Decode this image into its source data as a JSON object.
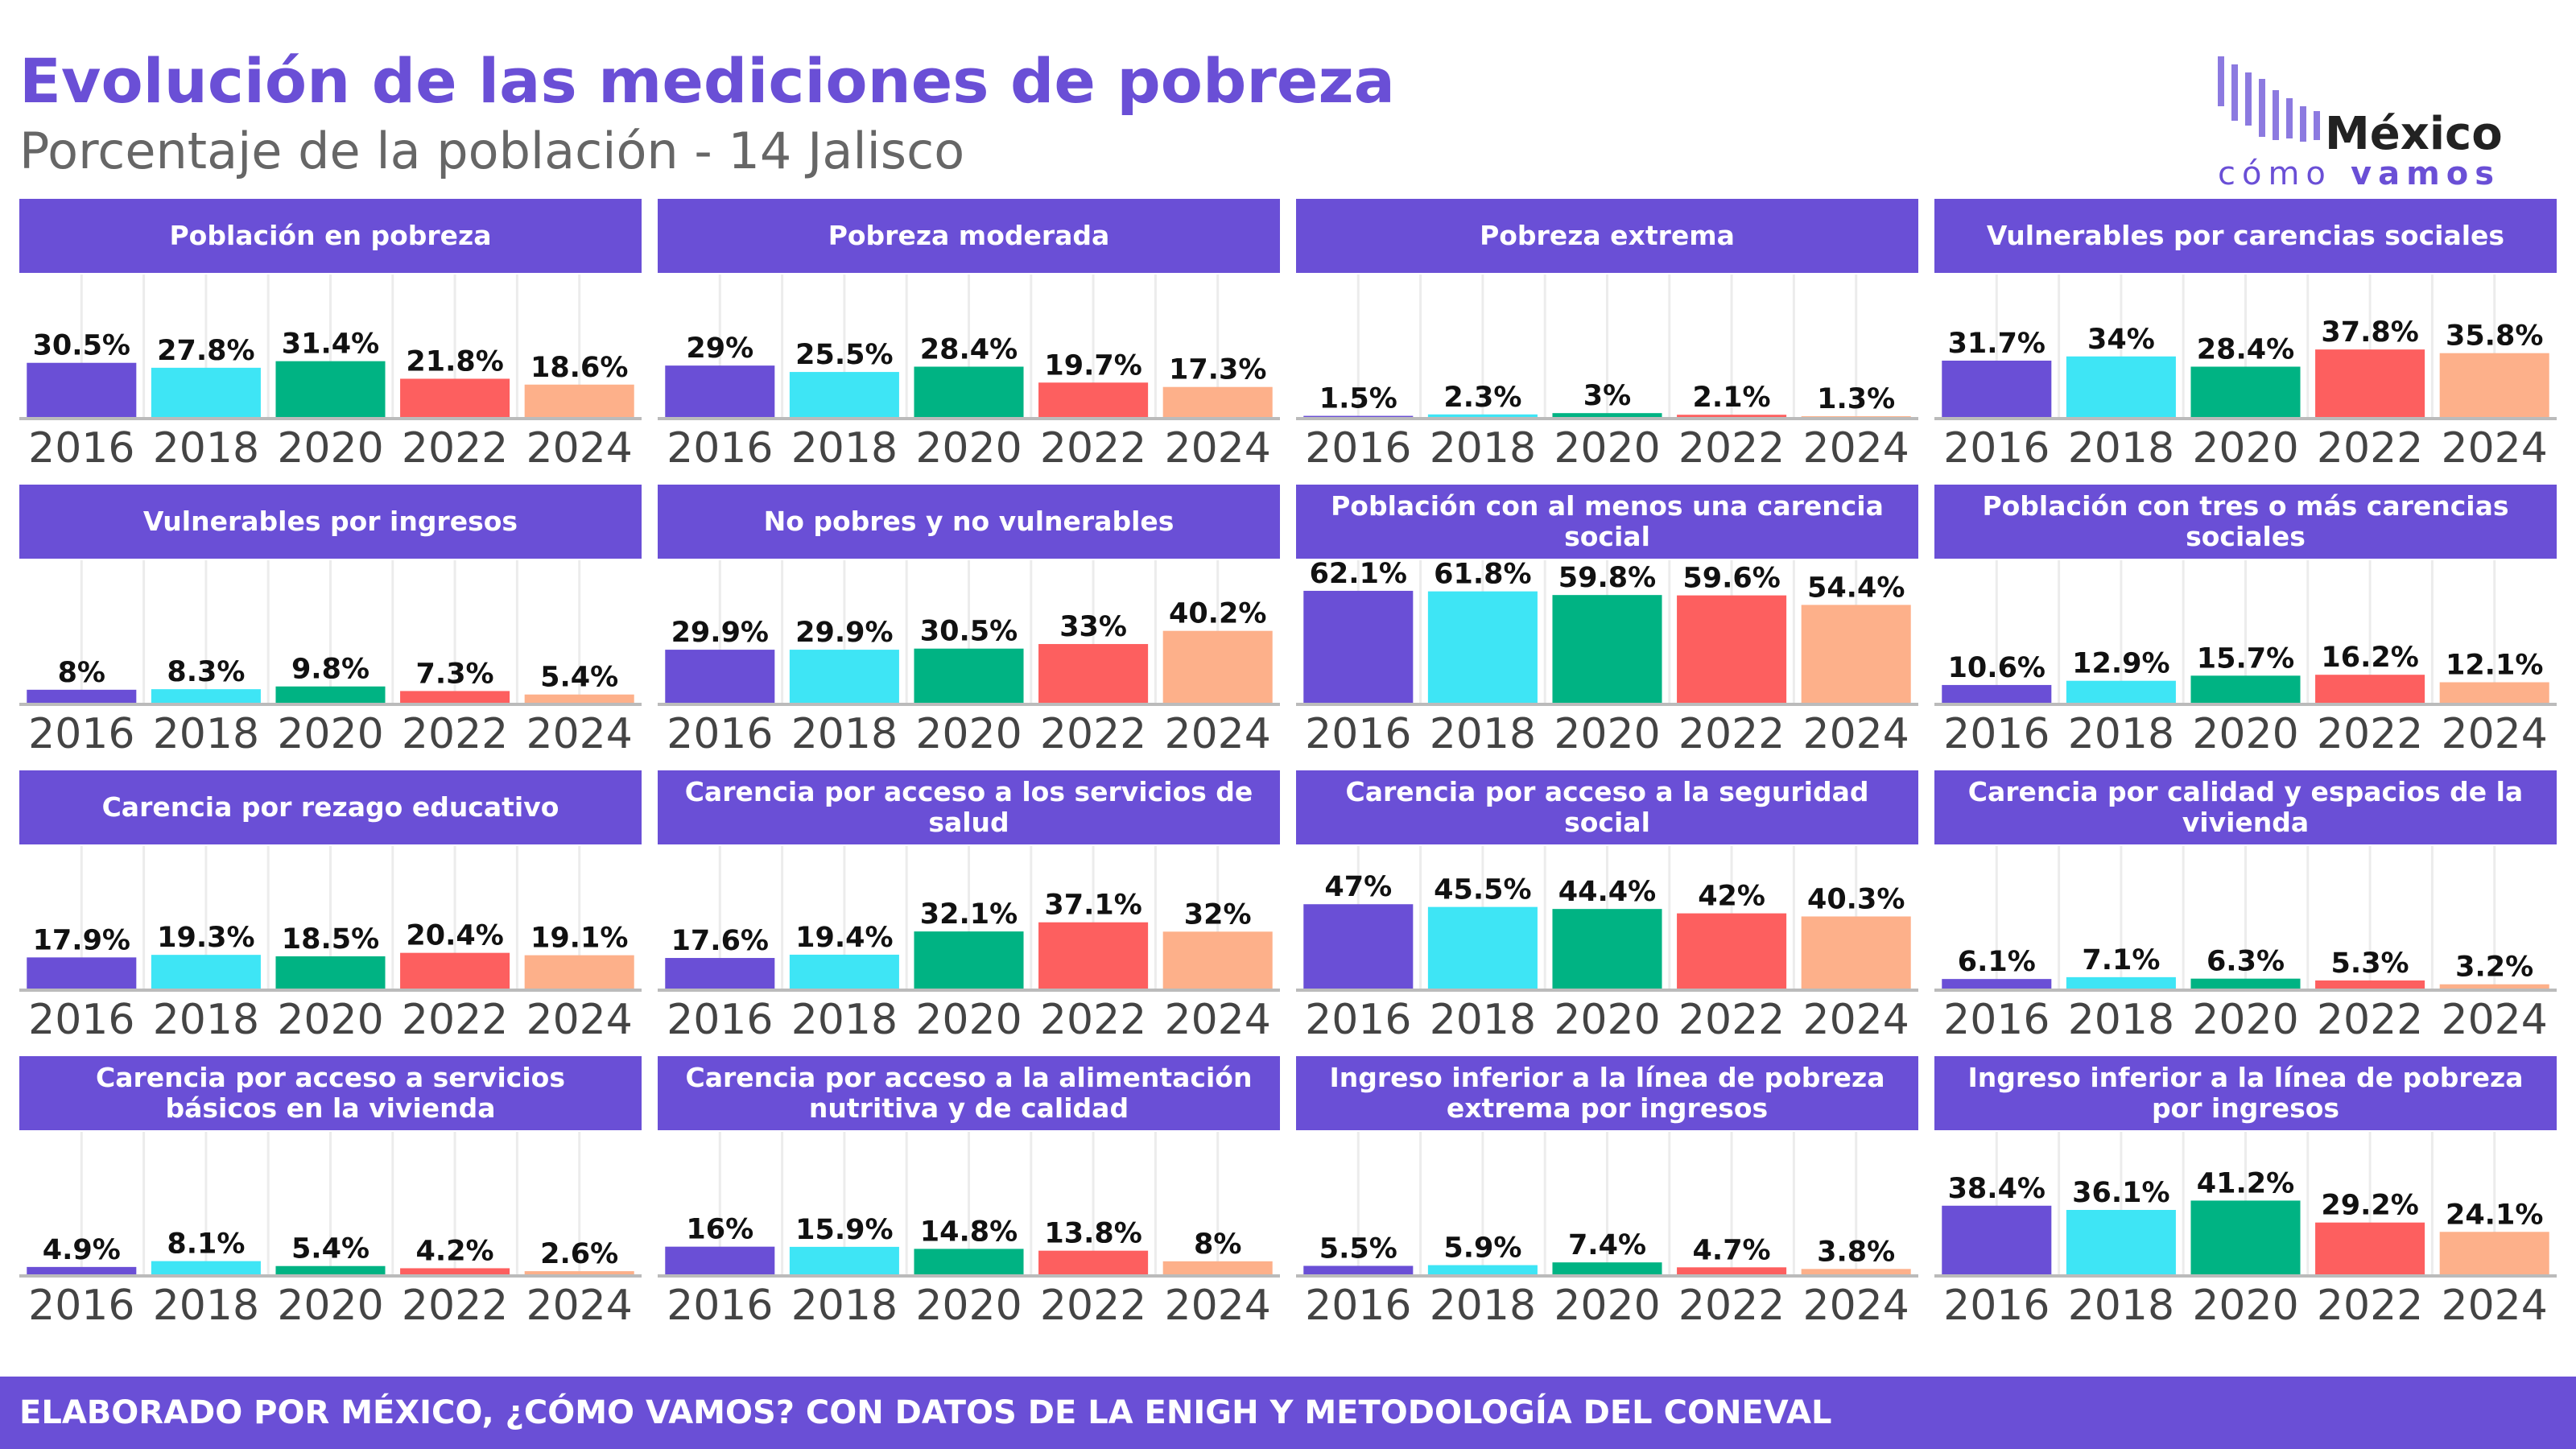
{
  "title": "Evolución de las mediciones de pobreza",
  "subtitle": "Porcentaje de la población - 14 Jalisco",
  "logo": {
    "name": "México",
    "tagline_1": "cómo",
    "tagline_2": "vamos"
  },
  "footer": "ELABORADO POR MÉXICO, ¿CÓMO VAMOS? CON DATOS DE LA ENIGH Y METODOLOGÍA DEL CONEVAL",
  "chart_data": [
    {
      "type": "bar",
      "title": "Población en pobreza",
      "categories": [
        "2016",
        "2018",
        "2020",
        "2022",
        "2024"
      ],
      "values": [
        30.5,
        27.8,
        31.4,
        21.8,
        18.6
      ],
      "value_labels": [
        "30.5%",
        "27.8%",
        "31.4%",
        "21.8%",
        "18.6%"
      ],
      "colors": [
        "#6a4fd6",
        "#3ee5f5",
        "#00b383",
        "#fd5f5f",
        "#fdb08a"
      ],
      "ylim": [
        0,
        70
      ]
    },
    {
      "type": "bar",
      "title": "Pobreza moderada",
      "categories": [
        "2016",
        "2018",
        "2020",
        "2022",
        "2024"
      ],
      "values": [
        29,
        25.5,
        28.4,
        19.7,
        17.3
      ],
      "value_labels": [
        "29%",
        "25.5%",
        "28.4%",
        "19.7%",
        "17.3%"
      ],
      "colors": [
        "#6a4fd6",
        "#3ee5f5",
        "#00b383",
        "#fd5f5f",
        "#fdb08a"
      ],
      "ylim": [
        0,
        70
      ]
    },
    {
      "type": "bar",
      "title": "Pobreza extrema",
      "categories": [
        "2016",
        "2018",
        "2020",
        "2022",
        "2024"
      ],
      "values": [
        1.5,
        2.3,
        3,
        2.1,
        1.3
      ],
      "value_labels": [
        "1.5%",
        "2.3%",
        "3%",
        "2.1%",
        "1.3%"
      ],
      "colors": [
        "#6a4fd6",
        "#3ee5f5",
        "#00b383",
        "#fd5f5f",
        "#fdb08a"
      ],
      "ylim": [
        0,
        70
      ]
    },
    {
      "type": "bar",
      "title": "Vulnerables por carencias sociales",
      "categories": [
        "2016",
        "2018",
        "2020",
        "2022",
        "2024"
      ],
      "values": [
        31.7,
        34,
        28.4,
        37.8,
        35.8
      ],
      "value_labels": [
        "31.7%",
        "34%",
        "28.4%",
        "37.8%",
        "35.8%"
      ],
      "colors": [
        "#6a4fd6",
        "#3ee5f5",
        "#00b383",
        "#fd5f5f",
        "#fdb08a"
      ],
      "ylim": [
        0,
        70
      ]
    },
    {
      "type": "bar",
      "title": "Vulnerables por ingresos",
      "categories": [
        "2016",
        "2018",
        "2020",
        "2022",
        "2024"
      ],
      "values": [
        8,
        8.3,
        9.8,
        7.3,
        5.4
      ],
      "value_labels": [
        "8%",
        "8.3%",
        "9.8%",
        "7.3%",
        "5.4%"
      ],
      "colors": [
        "#6a4fd6",
        "#3ee5f5",
        "#00b383",
        "#fd5f5f",
        "#fdb08a"
      ],
      "ylim": [
        0,
        70
      ]
    },
    {
      "type": "bar",
      "title": "No pobres y no vulnerables",
      "categories": [
        "2016",
        "2018",
        "2020",
        "2022",
        "2024"
      ],
      "values": [
        29.9,
        29.9,
        30.5,
        33,
        40.2
      ],
      "value_labels": [
        "29.9%",
        "29.9%",
        "30.5%",
        "33%",
        "40.2%"
      ],
      "colors": [
        "#6a4fd6",
        "#3ee5f5",
        "#00b383",
        "#fd5f5f",
        "#fdb08a"
      ],
      "ylim": [
        0,
        70
      ]
    },
    {
      "type": "bar",
      "title": "Población con al menos una carencia social",
      "categories": [
        "2016",
        "2018",
        "2020",
        "2022",
        "2024"
      ],
      "values": [
        62.1,
        61.8,
        59.8,
        59.6,
        54.4
      ],
      "value_labels": [
        "62.1%",
        "61.8%",
        "59.8%",
        "59.6%",
        "54.4%"
      ],
      "colors": [
        "#6a4fd6",
        "#3ee5f5",
        "#00b383",
        "#fd5f5f",
        "#fdb08a"
      ],
      "ylim": [
        0,
        70
      ]
    },
    {
      "type": "bar",
      "title": "Población con tres o más carencias sociales",
      "categories": [
        "2016",
        "2018",
        "2020",
        "2022",
        "2024"
      ],
      "values": [
        10.6,
        12.9,
        15.7,
        16.2,
        12.1
      ],
      "value_labels": [
        "10.6%",
        "12.9%",
        "15.7%",
        "16.2%",
        "12.1%"
      ],
      "colors": [
        "#6a4fd6",
        "#3ee5f5",
        "#00b383",
        "#fd5f5f",
        "#fdb08a"
      ],
      "ylim": [
        0,
        70
      ]
    },
    {
      "type": "bar",
      "title": "Carencia por rezago educativo",
      "categories": [
        "2016",
        "2018",
        "2020",
        "2022",
        "2024"
      ],
      "values": [
        17.9,
        19.3,
        18.5,
        20.4,
        19.1
      ],
      "value_labels": [
        "17.9%",
        "19.3%",
        "18.5%",
        "20.4%",
        "19.1%"
      ],
      "colors": [
        "#6a4fd6",
        "#3ee5f5",
        "#00b383",
        "#fd5f5f",
        "#fdb08a"
      ],
      "ylim": [
        0,
        70
      ]
    },
    {
      "type": "bar",
      "title": "Carencia por acceso a los servicios de salud",
      "categories": [
        "2016",
        "2018",
        "2020",
        "2022",
        "2024"
      ],
      "values": [
        17.6,
        19.4,
        32.1,
        37.1,
        32
      ],
      "value_labels": [
        "17.6%",
        "19.4%",
        "32.1%",
        "37.1%",
        "32%"
      ],
      "colors": [
        "#6a4fd6",
        "#3ee5f5",
        "#00b383",
        "#fd5f5f",
        "#fdb08a"
      ],
      "ylim": [
        0,
        70
      ]
    },
    {
      "type": "bar",
      "title": "Carencia por acceso a la seguridad social",
      "categories": [
        "2016",
        "2018",
        "2020",
        "2022",
        "2024"
      ],
      "values": [
        47,
        45.5,
        44.4,
        42,
        40.3
      ],
      "value_labels": [
        "47%",
        "45.5%",
        "44.4%",
        "42%",
        "40.3%"
      ],
      "colors": [
        "#6a4fd6",
        "#3ee5f5",
        "#00b383",
        "#fd5f5f",
        "#fdb08a"
      ],
      "ylim": [
        0,
        70
      ]
    },
    {
      "type": "bar",
      "title": "Carencia por calidad y espacios de la vivienda",
      "categories": [
        "2016",
        "2018",
        "2020",
        "2022",
        "2024"
      ],
      "values": [
        6.1,
        7.1,
        6.3,
        5.3,
        3.2
      ],
      "value_labels": [
        "6.1%",
        "7.1%",
        "6.3%",
        "5.3%",
        "3.2%"
      ],
      "colors": [
        "#6a4fd6",
        "#3ee5f5",
        "#00b383",
        "#fd5f5f",
        "#fdb08a"
      ],
      "ylim": [
        0,
        70
      ]
    },
    {
      "type": "bar",
      "title": "Carencia por acceso a servicios básicos en la vivienda",
      "categories": [
        "2016",
        "2018",
        "2020",
        "2022",
        "2024"
      ],
      "values": [
        4.9,
        8.1,
        5.4,
        4.2,
        2.6
      ],
      "value_labels": [
        "4.9%",
        "8.1%",
        "5.4%",
        "4.2%",
        "2.6%"
      ],
      "colors": [
        "#6a4fd6",
        "#3ee5f5",
        "#00b383",
        "#fd5f5f",
        "#fdb08a"
      ],
      "ylim": [
        0,
        70
      ]
    },
    {
      "type": "bar",
      "title": "Carencia por acceso a la alimentación nutritiva y de calidad",
      "categories": [
        "2016",
        "2018",
        "2020",
        "2022",
        "2024"
      ],
      "values": [
        16,
        15.9,
        14.8,
        13.8,
        8
      ],
      "value_labels": [
        "16%",
        "15.9%",
        "14.8%",
        "13.8%",
        "8%"
      ],
      "colors": [
        "#6a4fd6",
        "#3ee5f5",
        "#00b383",
        "#fd5f5f",
        "#fdb08a"
      ],
      "ylim": [
        0,
        70
      ]
    },
    {
      "type": "bar",
      "title": "Ingreso inferior a la línea de pobreza extrema por ingresos",
      "categories": [
        "2016",
        "2018",
        "2020",
        "2022",
        "2024"
      ],
      "values": [
        5.5,
        5.9,
        7.4,
        4.7,
        3.8
      ],
      "value_labels": [
        "5.5%",
        "5.9%",
        "7.4%",
        "4.7%",
        "3.8%"
      ],
      "colors": [
        "#6a4fd6",
        "#3ee5f5",
        "#00b383",
        "#fd5f5f",
        "#fdb08a"
      ],
      "ylim": [
        0,
        70
      ]
    },
    {
      "type": "bar",
      "title": "Ingreso inferior a la línea de pobreza por ingresos",
      "categories": [
        "2016",
        "2018",
        "2020",
        "2022",
        "2024"
      ],
      "values": [
        38.4,
        36.1,
        41.2,
        29.2,
        24.1
      ],
      "value_labels": [
        "38.4%",
        "36.1%",
        "41.2%",
        "29.2%",
        "24.1%"
      ],
      "colors": [
        "#6a4fd6",
        "#3ee5f5",
        "#00b383",
        "#fd5f5f",
        "#fdb08a"
      ],
      "ylim": [
        0,
        70
      ]
    }
  ]
}
